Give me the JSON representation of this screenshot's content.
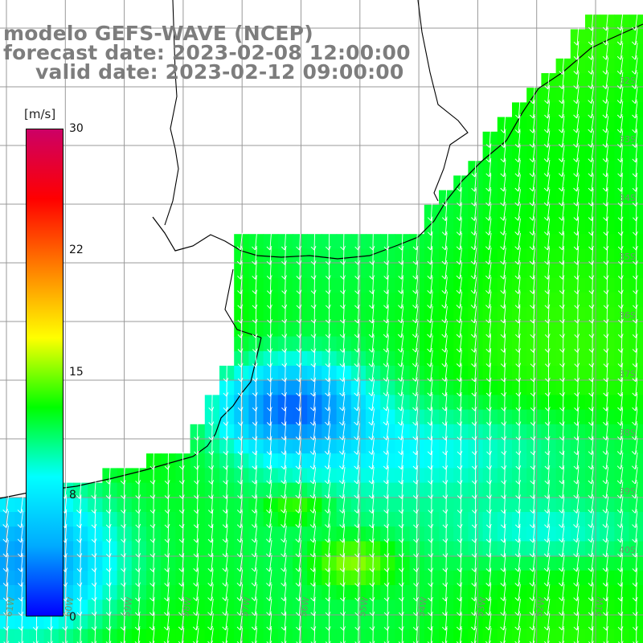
{
  "header": {
    "model_line": "modelo GEFS-WAVE (NCEP)",
    "forecast_line": "forecast date: 2023-02-08 12:00:00",
    "valid_line": "valid date: 2023-02-12 09:00:00"
  },
  "colorbar": {
    "unit": "[m/s]",
    "ticks": [
      "30",
      "22",
      "15",
      "8",
      "0"
    ],
    "min": 0,
    "max": 30,
    "gradient_stops": [
      "#0000ff",
      "#00aaff",
      "#00ffff",
      "#00ff00",
      "#ffff00",
      "#ff8000",
      "#ff0000",
      "#cc0066"
    ]
  },
  "map": {
    "lat_labels": [
      "32S",
      "33S",
      "34S",
      "35S",
      "36S",
      "37S",
      "38S",
      "39S",
      "40S"
    ],
    "lon_labels": [
      "61W",
      "60W",
      "59W",
      "58W",
      "57W",
      "56W",
      "55W",
      "54W",
      "53W",
      "52W",
      "51W"
    ],
    "land_color": "#ffffff",
    "grid_color": "#999999",
    "vector_color": "#ffffff"
  }
}
